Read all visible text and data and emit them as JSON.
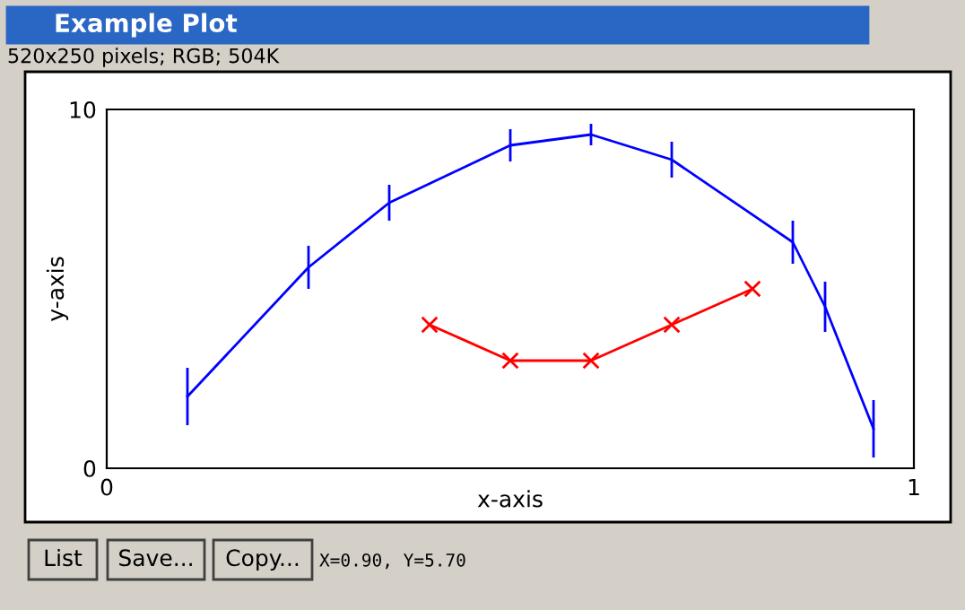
{
  "chart_data": {
    "type": "line",
    "title": "Example Plot",
    "subtitle": "520x250 pixels; RGB; 504K",
    "xlabel": "x-axis",
    "ylabel": "y-axis",
    "xlim": [
      0,
      1
    ],
    "xticks": [
      0,
      1
    ],
    "ylim": [
      0,
      10
    ],
    "yticks": [
      0,
      10
    ],
    "series": [
      {
        "color": "#0000ff",
        "marker": "none",
        "x": [
          0.1,
          0.25,
          0.35,
          0.5,
          0.6,
          0.7,
          0.85,
          0.89,
          0.95
        ],
        "values": [
          2.0,
          5.6,
          7.4,
          9.0,
          9.3,
          8.6,
          6.3,
          4.5,
          1.1
        ],
        "errors": [
          0.8,
          0.6,
          0.5,
          0.45,
          0.3,
          0.5,
          0.6,
          0.7,
          0.8
        ]
      },
      {
        "color": "#ff0000",
        "marker": "cross",
        "x": [
          0.4,
          0.5,
          0.6,
          0.7,
          0.8
        ],
        "values": [
          4.0,
          3.0,
          3.0,
          4.0,
          5.0
        ]
      }
    ],
    "annotations": [
      "List",
      "Save...",
      "Copy...",
      "X=0.90, Y=5.70"
    ]
  }
}
